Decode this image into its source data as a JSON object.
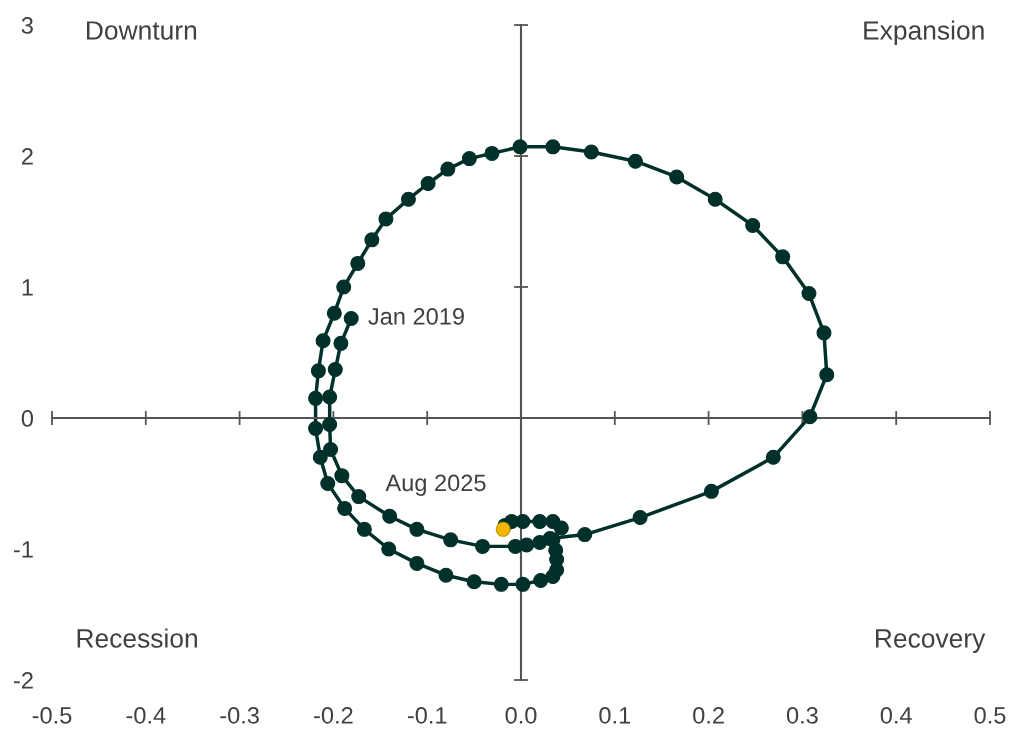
{
  "chart_data": {
    "type": "line",
    "xlim": [
      -0.5,
      0.5
    ],
    "ylim": [
      -2,
      3
    ],
    "xticks": [
      {
        "value": -0.5,
        "label": "-0.5"
      },
      {
        "value": -0.4,
        "label": "-0.4"
      },
      {
        "value": -0.3,
        "label": "-0.3"
      },
      {
        "value": -0.2,
        "label": "-0.2"
      },
      {
        "value": -0.1,
        "label": "-0.1"
      },
      {
        "value": 0,
        "label": "0.0"
      },
      {
        "value": 0.1,
        "label": "0.1"
      },
      {
        "value": 0.2,
        "label": "0.2"
      },
      {
        "value": 0.3,
        "label": "0.3"
      },
      {
        "value": 0.4,
        "label": "0.4"
      },
      {
        "value": 0.5,
        "label": "0.5"
      }
    ],
    "yticks": [
      -2,
      -1,
      0,
      1,
      2,
      3
    ],
    "marker": "circle",
    "line_style": "solid",
    "series": [
      {
        "color": "#00302a",
        "x": [
          -0.181,
          -0.192,
          -0.198,
          -0.204,
          -0.204,
          -0.203,
          -0.191,
          -0.173,
          -0.14,
          -0.111,
          -0.075,
          -0.041,
          -0.006,
          0.006,
          0.02,
          0.031,
          0.068,
          0.127,
          0.203,
          0.269,
          0.308,
          0.326,
          0.323,
          0.307,
          0.279,
          0.247,
          0.207,
          0.166,
          0.122,
          0.075,
          0.034,
          -0.001,
          -0.031,
          -0.055,
          -0.078,
          -0.099,
          -0.12,
          -0.144,
          -0.159,
          -0.174,
          -0.189,
          -0.199,
          -0.211,
          -0.216,
          -0.219,
          -0.219,
          -0.214,
          -0.206,
          -0.188,
          -0.167,
          -0.141,
          -0.111,
          -0.08,
          -0.05,
          -0.021,
          0.002,
          0.021,
          0.034,
          0.038,
          0.038,
          0.037,
          0.034,
          0.043,
          0.034,
          0.02,
          0.002,
          -0.01,
          -0.017,
          -0.019
        ],
        "values": [
          0.76,
          0.57,
          0.37,
          0.16,
          -0.05,
          -0.24,
          -0.44,
          -0.6,
          -0.75,
          -0.85,
          -0.93,
          -0.98,
          -0.98,
          -0.97,
          -0.95,
          -0.92,
          -0.89,
          -0.76,
          -0.56,
          -0.3,
          0.01,
          0.33,
          0.65,
          0.95,
          1.23,
          1.47,
          1.67,
          1.84,
          1.96,
          2.03,
          2.07,
          2.07,
          2.02,
          1.98,
          1.9,
          1.79,
          1.67,
          1.52,
          1.36,
          1.18,
          1.0,
          0.8,
          0.59,
          0.36,
          0.15,
          -0.08,
          -0.3,
          -0.5,
          -0.69,
          -0.85,
          -1.0,
          -1.11,
          -1.2,
          -1.25,
          -1.27,
          -1.27,
          -1.24,
          -1.21,
          -1.16,
          -1.08,
          -1.01,
          -0.93,
          -0.84,
          -0.79,
          -0.79,
          -0.79,
          -0.79,
          -0.82,
          -0.85
        ],
        "colors": [
          "#00302a",
          "#00302a",
          "#00302a",
          "#00302a",
          "#00302a",
          "#00302a",
          "#00302a",
          "#00302a",
          "#00302a",
          "#00302a",
          "#00302a",
          "#00302a",
          "#00302a",
          "#00302a",
          "#00302a",
          "#00302a",
          "#00302a",
          "#00302a",
          "#00302a",
          "#00302a",
          "#00302a",
          "#00302a",
          "#00302a",
          "#00302a",
          "#00302a",
          "#00302a",
          "#00302a",
          "#00302a",
          "#00302a",
          "#00302a",
          "#00302a",
          "#00302a",
          "#00302a",
          "#00302a",
          "#00302a",
          "#00302a",
          "#00302a",
          "#00302a",
          "#00302a",
          "#00302a",
          "#00302a",
          "#00302a",
          "#00302a",
          "#00302a",
          "#00302a",
          "#00302a",
          "#00302a",
          "#00302a",
          "#00302a",
          "#00302a",
          "#00302a",
          "#00302a",
          "#00302a",
          "#00302a",
          "#00302a",
          "#00302a",
          "#00302a",
          "#00302a",
          "#00302a",
          "#00302a",
          "#00302a",
          "#00302a",
          "#00302a",
          "#00302a",
          "#00302a",
          "#00302a",
          "#00302a",
          "#00302a",
          "#f2b705"
        ]
      }
    ],
    "annotations": [
      "Downturn",
      "Expansion",
      "Recession",
      "Recovery",
      {
        "text": "Jan 2019",
        "x": -0.181,
        "y": 0.76
      },
      {
        "text": "Aug 2025",
        "x": -0.019,
        "y": -0.85
      }
    ]
  }
}
